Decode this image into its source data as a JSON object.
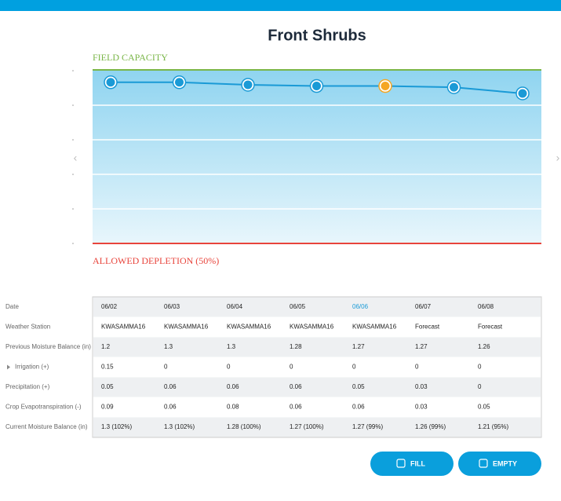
{
  "header": {
    "title": "Front Shrubs"
  },
  "chart_data": {
    "type": "line",
    "top_label": "FIELD CAPACITY",
    "bottom_label": "ALLOWED DEPLETION (50%)",
    "values": [
      1.3,
      1.3,
      1.28,
      1.27,
      1.27,
      1.26,
      1.21
    ],
    "ylim": [
      0,
      1.4
    ],
    "color": "#1a9ad6",
    "highlight_index": 4,
    "highlight_color": "#f5a623"
  },
  "table": {
    "row_labels": [
      "Date",
      "Weather Station",
      "Previous Moisture Balance (in)",
      "Irrigation (+)",
      "Precipitation (+)",
      "Crop Evapotranspiration (-)",
      "Current Moisture Balance (in)"
    ],
    "rows": [
      [
        "06/02",
        "06/03",
        "06/04",
        "06/05",
        "06/06",
        "06/07",
        "06/08"
      ],
      [
        "KWASAMMA16",
        "KWASAMMA16",
        "KWASAMMA16",
        "KWASAMMA16",
        "KWASAMMA16",
        "Forecast",
        "Forecast"
      ],
      [
        "1.2",
        "1.3",
        "1.3",
        "1.28",
        "1.27",
        "1.27",
        "1.26"
      ],
      [
        "0.15",
        "0",
        "0",
        "0",
        "0",
        "0",
        "0"
      ],
      [
        "0.05",
        "0.06",
        "0.06",
        "0.06",
        "0.05",
        "0.03",
        "0"
      ],
      [
        "0.09",
        "0.06",
        "0.08",
        "0.06",
        "0.06",
        "0.03",
        "0.05"
      ],
      [
        "1.3 (102%)",
        "1.3 (102%)",
        "1.28 (100%)",
        "1.27 (100%)",
        "1.27 (99%)",
        "1.26 (99%)",
        "1.21 (95%)"
      ]
    ]
  },
  "buttons": [
    {
      "label": "FILL"
    },
    {
      "label": "EMPTY"
    }
  ]
}
